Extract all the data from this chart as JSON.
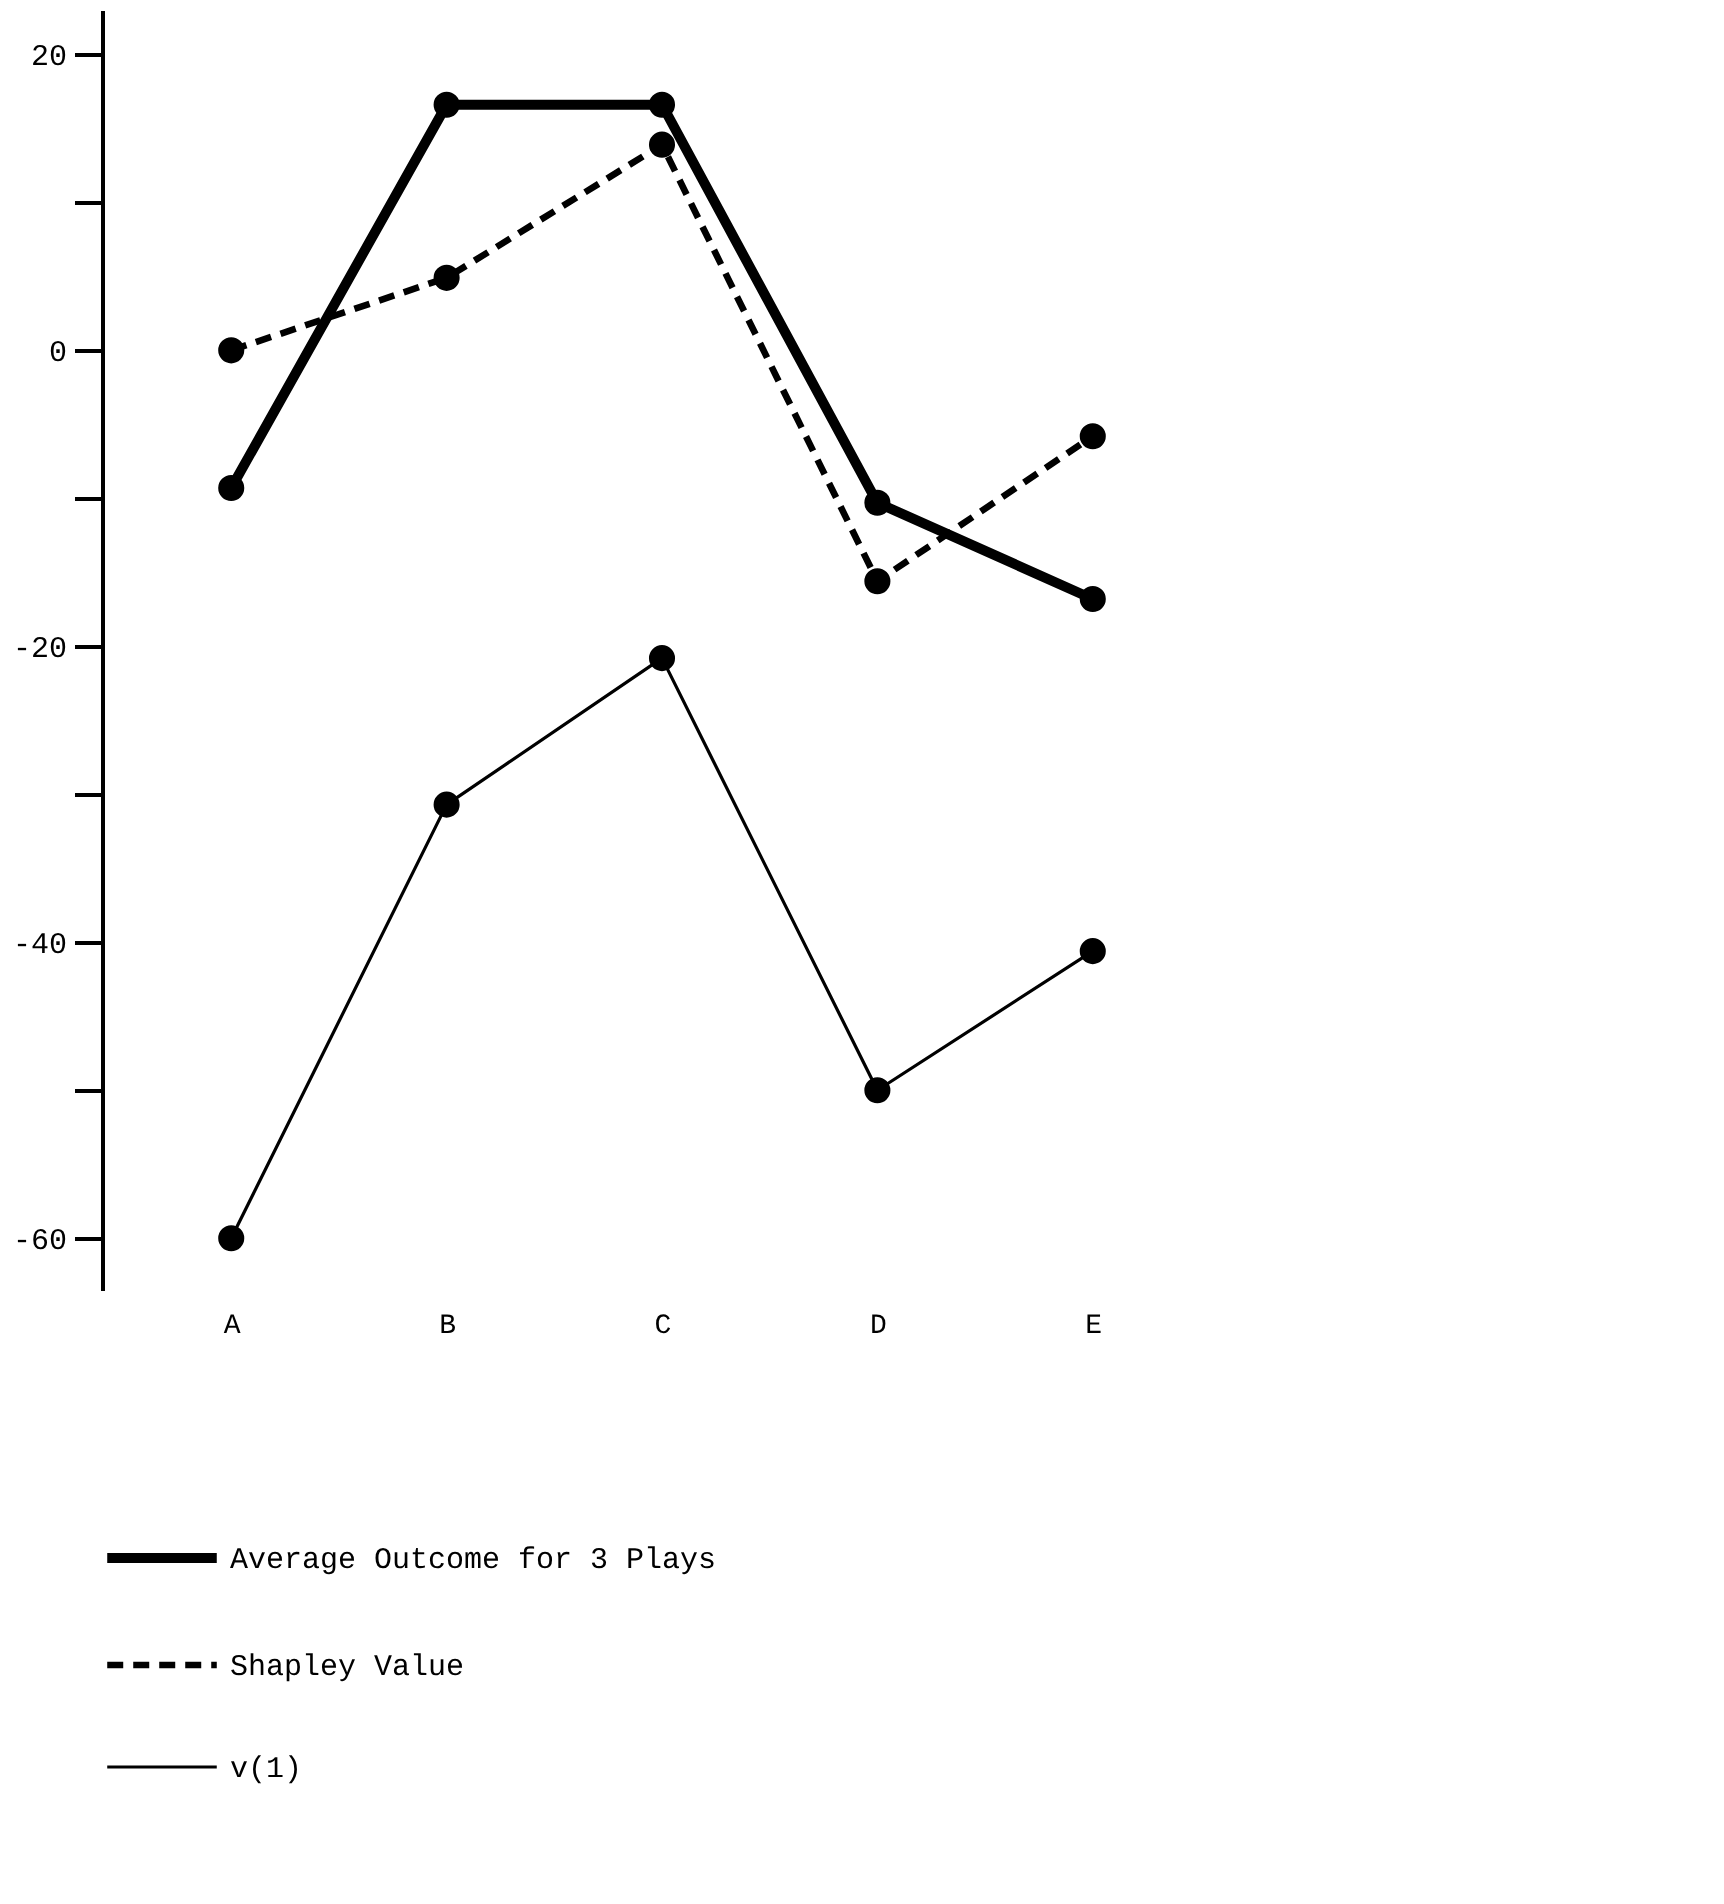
{
  "chart_data": {
    "type": "line",
    "categories": [
      "A",
      "B",
      "C",
      "D",
      "E"
    ],
    "series": [
      {
        "name": "Average Outcome for 3 Plays",
        "color": "#000000",
        "line_style": "solid",
        "values": [
          -9.3,
          16.6,
          16.6,
          -10.3,
          -16.8
        ]
      },
      {
        "name": "Shapley Value",
        "color": "#000000",
        "line_style": "dashed",
        "values": [
          0,
          4.9,
          13.9,
          -15.6,
          -5.8
        ]
      },
      {
        "name": "v(1)",
        "color": "#000000",
        "line_style": "solid",
        "values": [
          -60,
          -30.7,
          -20.8,
          -50,
          -40.6
        ]
      }
    ],
    "ylim": [
      -63.5,
      23
    ],
    "yticks": [
      20,
      {
        "value": 10,
        "label": null
      },
      0,
      {
        "value": -10,
        "label": null
      },
      -20,
      {
        "value": -30,
        "label": null
      },
      -40,
      {
        "value": -50,
        "label": null
      },
      -60
    ],
    "marker": "circle",
    "legend": "bottom"
  }
}
